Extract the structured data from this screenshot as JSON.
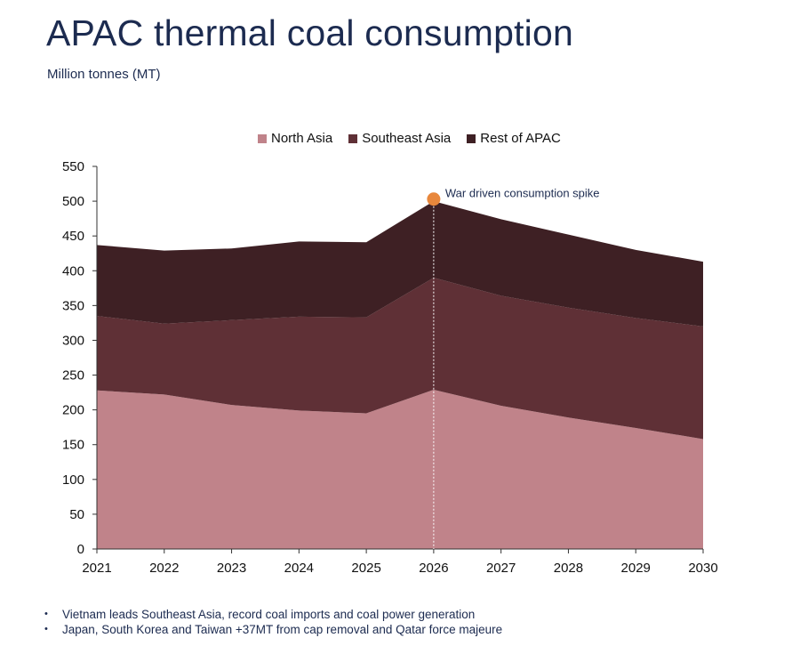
{
  "title": "APAC thermal coal consumption",
  "subtitle": "Million tonnes (MT)",
  "colors": {
    "north_asia": "#c0838a",
    "southeast_asia": "#5f3036",
    "rest_of_apac": "#3e2024",
    "marker": "#e8873c"
  },
  "chart_data": {
    "type": "area",
    "stacked": true,
    "x": [
      2021,
      2022,
      2023,
      2024,
      2025,
      2026,
      2027,
      2028,
      2029,
      2030
    ],
    "series": [
      {
        "name": "North Asia",
        "values": [
          228,
          222,
          207,
          199,
          195,
          229,
          206,
          189,
          174,
          158
        ]
      },
      {
        "name": "Southeast Asia",
        "values": [
          107,
          102,
          122,
          135,
          138,
          161,
          158,
          158,
          158,
          162
        ]
      },
      {
        "name": "Rest of APAC",
        "values": [
          102,
          105,
          103,
          108,
          108,
          110,
          110,
          105,
          98,
          93
        ]
      }
    ],
    "ylim": [
      0,
      550
    ],
    "yticks": [
      0,
      50,
      100,
      150,
      200,
      250,
      300,
      350,
      400,
      450,
      500,
      550
    ],
    "legend_position": "top",
    "grid": false,
    "annotation": {
      "x": 2026,
      "y": 503,
      "text": "War driven consumption spike"
    }
  },
  "notes": [
    "Vietnam leads Southeast Asia, record coal imports and coal power generation",
    "Japan, South Korea and Taiwan +37MT from cap removal and Qatar force majeure"
  ]
}
